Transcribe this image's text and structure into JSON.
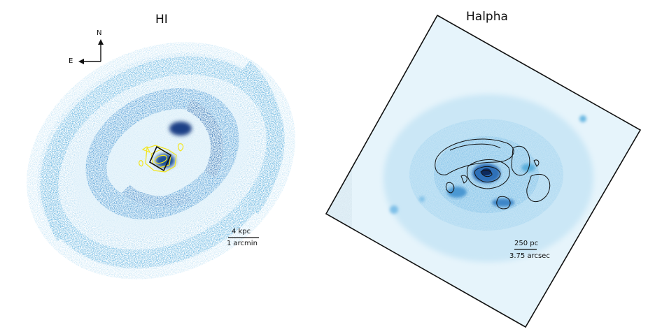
{
  "hi_panel": {
    "title": "HI",
    "compass": {
      "north": "N",
      "east": "E"
    },
    "scalebar": {
      "top": "4 kpc",
      "bottom": "1 arcmin"
    }
  },
  "halpha_panel": {
    "title": "Halpha",
    "scalebar": {
      "top": "250 pc",
      "bottom": "3.75 arcsec"
    }
  },
  "colors": {
    "map_light": "#d2ecf8",
    "map_mid": "#5aaedc",
    "map_dark": "#1c5fa8",
    "map_core": "#0d2a5e",
    "overlay_contour_hi": "#f2e51c",
    "contour_halpha": "#111111"
  }
}
